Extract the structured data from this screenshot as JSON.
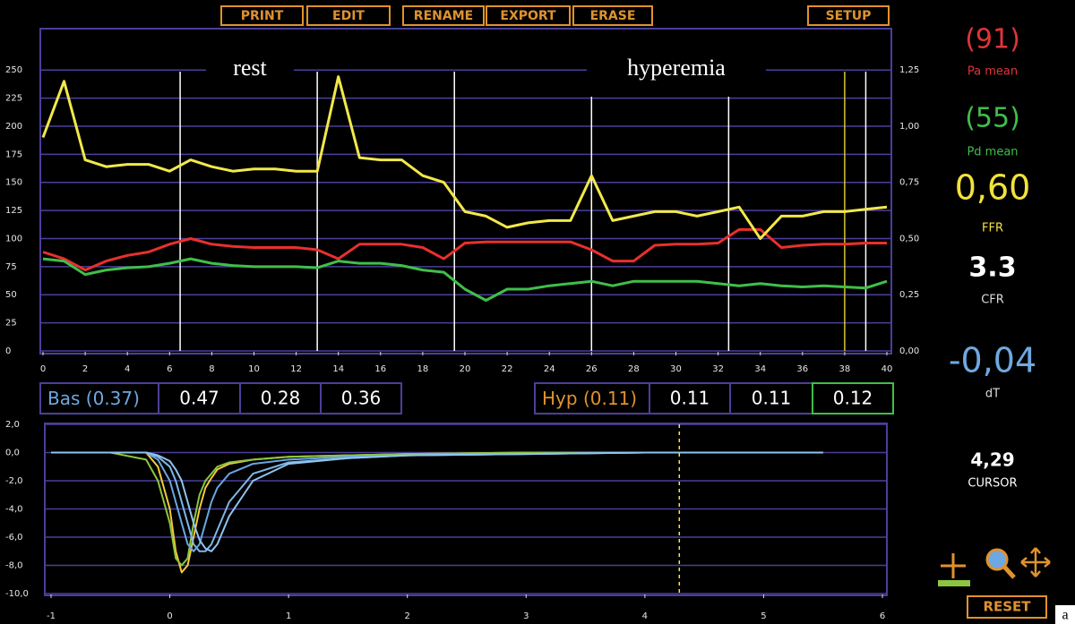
{
  "toolbar": [
    "PRINT",
    "EDIT",
    "RENAME",
    "EXPORT",
    "ERASE",
    "SETUP"
  ],
  "annotations": [
    "rest",
    "hyperemia"
  ],
  "bas": {
    "label": "Bas",
    "mean": "(0.37)",
    "values": [
      0.47,
      0.28,
      0.36
    ]
  },
  "hyp": {
    "label": "Hyp",
    "mean": "(0.11)",
    "values": [
      0.11,
      0.11,
      0.12
    ]
  },
  "panel": [
    {
      "value": "(91)",
      "caption": "Pa mean",
      "color": "#e0343a"
    },
    {
      "value": "(55)",
      "caption": "Pd mean",
      "color": "#3fbf4a"
    },
    {
      "value": "0,60",
      "caption": "FFR",
      "color": "#f2e23a"
    },
    {
      "value": "3.3",
      "caption": "CFR",
      "color": "#ffffff"
    },
    {
      "value": "-0,04",
      "caption": "dT",
      "color": "#6fa8e0"
    }
  ],
  "cursor": {
    "value": 4.29,
    "label": "4,29",
    "caption": "CURSOR"
  },
  "reset": "RESET",
  "figure_label": "a",
  "chart_data": [
    {
      "type": "line",
      "x": [
        0,
        1,
        2,
        3,
        4,
        5,
        6,
        7,
        8,
        9,
        10,
        11,
        12,
        13,
        14,
        15,
        16,
        17,
        18,
        19,
        20,
        21,
        22,
        23,
        24,
        25,
        26,
        27,
        28,
        29,
        30,
        31,
        32,
        33,
        34,
        35,
        36,
        37,
        38,
        39,
        40
      ],
      "series": [
        {
          "color": "#e8302e",
          "values": [
            88,
            82,
            72,
            80,
            85,
            88,
            95,
            100,
            95,
            93,
            92,
            92,
            92,
            90,
            82,
            95,
            95,
            95,
            92,
            82,
            96,
            97,
            97,
            97,
            97,
            97,
            90,
            80,
            80,
            94,
            95,
            95,
            96,
            108,
            108,
            92,
            94,
            95,
            95,
            96,
            96
          ]
        },
        {
          "color": "#3fbf4a",
          "values": [
            82,
            80,
            68,
            72,
            74,
            75,
            78,
            82,
            78,
            76,
            75,
            75,
            75,
            74,
            80,
            78,
            78,
            76,
            72,
            70,
            55,
            45,
            55,
            55,
            58,
            60,
            62,
            58,
            62,
            62,
            62,
            62,
            60,
            58,
            60,
            58,
            57,
            58,
            57,
            56,
            62
          ]
        },
        {
          "color": "#f2e84a",
          "axis": "y2",
          "values": [
            0.95,
            1.2,
            0.85,
            0.82,
            0.83,
            0.83,
            0.8,
            0.85,
            0.82,
            0.8,
            0.81,
            0.81,
            0.8,
            0.8,
            1.22,
            0.86,
            0.85,
            0.85,
            0.78,
            0.75,
            0.62,
            0.6,
            0.55,
            0.57,
            0.58,
            0.58,
            0.78,
            0.58,
            0.6,
            0.62,
            0.62,
            0.6,
            0.62,
            0.64,
            0.5,
            0.6,
            0.6,
            0.62,
            0.62,
            0.63,
            0.64
          ]
        }
      ],
      "xlim": [
        0,
        40
      ],
      "xticks": [
        0,
        2,
        4,
        6,
        8,
        10,
        12,
        14,
        16,
        18,
        20,
        22,
        24,
        26,
        28,
        30,
        32,
        34,
        36,
        38,
        40
      ],
      "ylim": [
        0,
        290
      ],
      "yticks": [
        0,
        25,
        50,
        75,
        100,
        125,
        150,
        175,
        200,
        225,
        250
      ],
      "y2lim": [
        0,
        1.45
      ],
      "y2ticks": [
        {
          "value": 0,
          "label": "0,00"
        },
        {
          "value": 0.25,
          "label": "0,25"
        },
        {
          "value": 0.5,
          "label": "0,50"
        },
        {
          "value": 0.75,
          "label": "0,75"
        },
        {
          "value": 1,
          "label": "1,00"
        },
        {
          "value": 1.25,
          "label": "1,25"
        }
      ],
      "grid": true,
      "markers": [
        6.5,
        13,
        19.5,
        26,
        32.5,
        38,
        39
      ],
      "marker_colors": [
        "#ffffff",
        "#ffffff",
        "#ffffff",
        "#ffffff",
        "#ffffff",
        "#d8c830",
        "#ffffff"
      ]
    },
    {
      "type": "line",
      "x": [
        -1,
        -0.5,
        -0.2,
        -0.1,
        0,
        0.05,
        0.1,
        0.15,
        0.2,
        0.25,
        0.3,
        0.35,
        0.4,
        0.5,
        0.7,
        1,
        1.5,
        2,
        3,
        4,
        5,
        5.5
      ],
      "series": [
        {
          "color": "#f2c93a",
          "values": [
            0,
            0,
            0,
            -1,
            -4,
            -7,
            -8.5,
            -8,
            -6,
            -4,
            -2.5,
            -1.8,
            -1.2,
            -0.8,
            -0.5,
            -0.3,
            -0.2,
            -0.1,
            0,
            0,
            0,
            0
          ]
        },
        {
          "color": "#8cc63f",
          "values": [
            0,
            0,
            -0.5,
            -2,
            -5,
            -7.5,
            -8,
            -7.5,
            -5,
            -3,
            -2,
            -1.5,
            -1,
            -0.7,
            -0.5,
            -0.3,
            -0.2,
            -0.1,
            0,
            0,
            0,
            0
          ]
        },
        {
          "color": "#7db8e8",
          "values": [
            0,
            0,
            0,
            -0.3,
            -1,
            -2,
            -3.5,
            -5,
            -6.5,
            -7,
            -7,
            -6.5,
            -5.5,
            -3.5,
            -1.5,
            -0.7,
            -0.4,
            -0.2,
            -0.1,
            0,
            0,
            0
          ]
        },
        {
          "color": "#6aa6e0",
          "values": [
            0,
            0,
            0,
            -0.5,
            -2,
            -3.5,
            -5,
            -6.5,
            -7,
            -6.5,
            -5,
            -3.5,
            -2.5,
            -1.5,
            -0.8,
            -0.5,
            -0.3,
            -0.2,
            -0.1,
            0,
            0,
            0
          ]
        },
        {
          "color": "#8fc4ee",
          "values": [
            0,
            0,
            0,
            -0.2,
            -0.6,
            -1.2,
            -2,
            -3.5,
            -5,
            -6.2,
            -6.8,
            -7,
            -6.5,
            -4.5,
            -2,
            -0.8,
            -0.4,
            -0.2,
            -0.1,
            0,
            0,
            0
          ]
        }
      ],
      "xlim": [
        -1,
        6
      ],
      "xticks": [
        -1,
        0,
        1,
        2,
        3,
        4,
        5,
        6
      ],
      "ylim": [
        -10,
        2
      ],
      "yticks": [
        {
          "value": 2,
          "label": "2,0"
        },
        {
          "value": 0,
          "label": "0,0"
        },
        {
          "value": -2,
          "label": "-2,0"
        },
        {
          "value": -4,
          "label": "-4,0"
        },
        {
          "value": -6,
          "label": "-6,0"
        },
        {
          "value": -8,
          "label": "-8,0"
        },
        {
          "value": -10,
          "label": "-10,0"
        }
      ],
      "grid": true
    }
  ]
}
